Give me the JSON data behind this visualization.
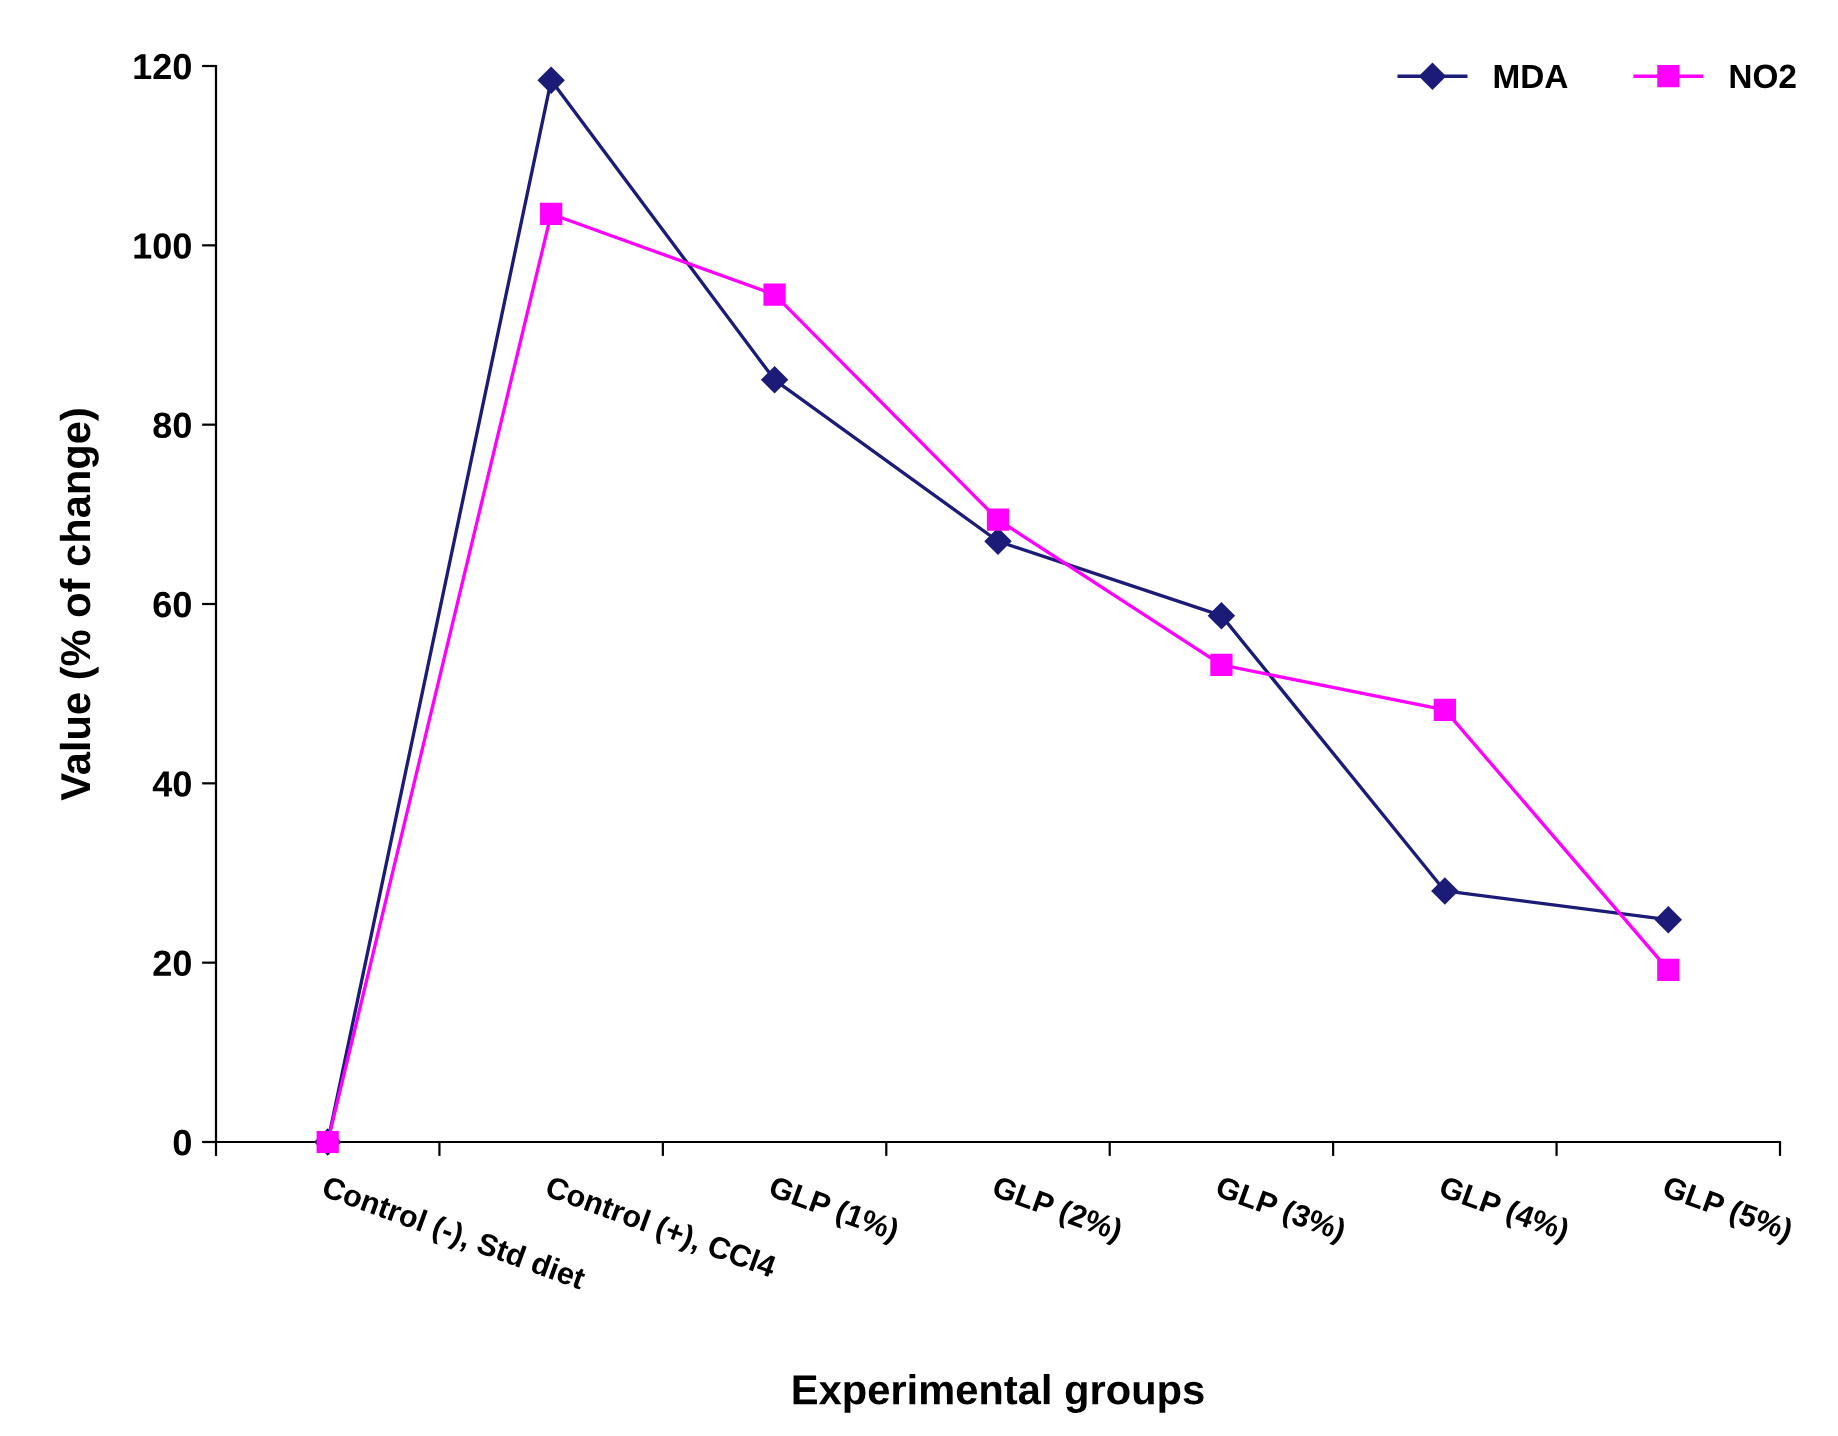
{
  "chart_data": {
    "type": "line",
    "xlabel": "Experimental groups",
    "ylabel": "Value (% of change)",
    "categories": [
      "Control (-), Std diet",
      "Control (+), CCl4",
      "GLP (1%)",
      "GLP (2%)",
      "GLP (3%)",
      "GLP (4%)",
      "GLP (5%)"
    ],
    "series": [
      {
        "name": "MDA",
        "color": "#1c1c78",
        "marker": "diamond",
        "values": [
          0,
          118.4,
          85,
          67,
          58.7,
          28,
          24.8
        ]
      },
      {
        "name": "NO2",
        "color": "#ff00ff",
        "marker": "square",
        "values": [
          0,
          103.5,
          94.5,
          69.4,
          53.2,
          48.2,
          19.2
        ]
      }
    ],
    "ylim": [
      0,
      120
    ],
    "yticks": [
      0,
      20,
      40,
      60,
      80,
      100,
      120
    ],
    "grid": false,
    "legend": "top right",
    "line_style": "solid"
  }
}
